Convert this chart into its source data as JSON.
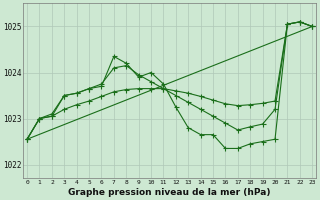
{
  "background_color": "#cde8d2",
  "grid_color": "#b0c8b8",
  "line_color": "#1a6e1a",
  "title": "Graphe pression niveau de la mer (hPa)",
  "xtick_labels": [
    "0",
    "1",
    "2",
    "3",
    "4",
    "5",
    "6",
    "7",
    "8",
    "9",
    "10",
    "11",
    "12",
    "13",
    "14",
    "15",
    "16",
    "17",
    "18",
    "19",
    "20",
    "21",
    "22",
    "23"
  ],
  "ytick_vals": [
    1022,
    1023,
    1024,
    1025
  ],
  "ylim": [
    1021.7,
    1025.5
  ],
  "xlim": [
    -0.3,
    23.3
  ],
  "line1": {
    "x": [
      0,
      1,
      2,
      3,
      4,
      5,
      6,
      7,
      8,
      9,
      10,
      11,
      12,
      13,
      14,
      15,
      16,
      17,
      18,
      19,
      20,
      21,
      22,
      23
    ],
    "y": [
      1022.55,
      1023.0,
      1023.1,
      1023.5,
      1023.55,
      1023.65,
      1023.7,
      1024.35,
      1024.2,
      1023.9,
      1024.0,
      1023.75,
      1023.25,
      1022.8,
      1022.65,
      1022.65,
      1022.35,
      1022.35,
      1022.45,
      1022.5,
      1022.55,
      1025.05,
      1025.1,
      1025.0
    ]
  },
  "line2": {
    "x": [
      0,
      1,
      2,
      3,
      4,
      5,
      6,
      7,
      8,
      9,
      10,
      11,
      12,
      13,
      14,
      15,
      16,
      17,
      18,
      19,
      20,
      21,
      22,
      23
    ],
    "y": [
      1022.55,
      1023.0,
      1023.05,
      1023.5,
      1023.55,
      1023.65,
      1023.75,
      1024.1,
      1024.15,
      1023.95,
      1023.8,
      1023.65,
      1023.5,
      1023.35,
      1023.2,
      1023.05,
      1022.9,
      1022.75,
      1022.82,
      1022.88,
      1023.2,
      1025.05,
      1025.1,
      1025.0
    ]
  },
  "line3": {
    "x": [
      0,
      23
    ],
    "y": [
      1022.55,
      1025.0
    ]
  },
  "line4": {
    "x": [
      0,
      1,
      2,
      3,
      4,
      5,
      6,
      7,
      8,
      9,
      10,
      11,
      12,
      13,
      14,
      15,
      16,
      17,
      18,
      19,
      20,
      21,
      22,
      23
    ],
    "y": [
      1022.55,
      1023.0,
      1023.05,
      1023.2,
      1023.3,
      1023.38,
      1023.48,
      1023.58,
      1023.63,
      1023.65,
      1023.65,
      1023.65,
      1023.6,
      1023.55,
      1023.48,
      1023.4,
      1023.32,
      1023.28,
      1023.3,
      1023.33,
      1023.38,
      1025.05,
      1025.1,
      1025.0
    ]
  }
}
